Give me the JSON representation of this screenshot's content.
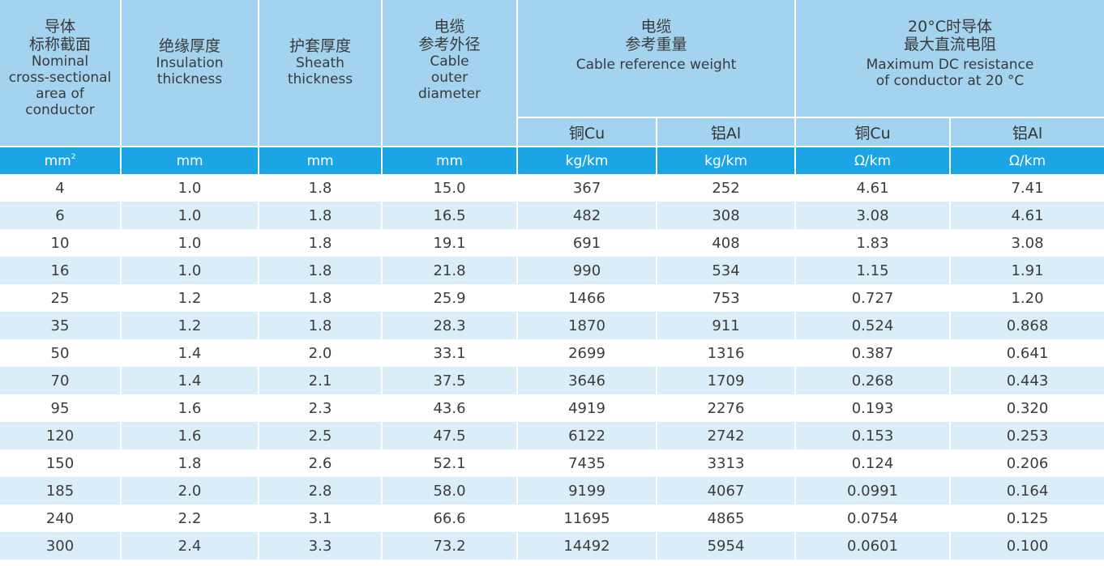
{
  "headers": {
    "area": {
      "zh1": "导体",
      "zh2": "标称截面",
      "en": [
        "Nominal",
        "cross-sectional",
        "area of",
        "conductor"
      ]
    },
    "insulation": {
      "zh": "绝缘厚度",
      "en": [
        "Insulation",
        "thickness"
      ]
    },
    "sheath": {
      "zh": "护套厚度",
      "en": [
        "Sheath",
        "thickness"
      ]
    },
    "diameter": {
      "zh1": "电缆",
      "zh2": "参考外径",
      "en": [
        "Cable",
        "outer",
        "diameter"
      ]
    },
    "weight": {
      "zh1": "电缆",
      "zh2": "参考重量",
      "en": "Cable reference weight",
      "sub_cu": "铜Cu",
      "sub_al": "铝Al"
    },
    "resistance": {
      "zh1": "20°C时导体",
      "zh2": "最大直流电阻",
      "en1": "Maximum DC resistance",
      "en2": "of conductor at 20 °C",
      "sub_cu": "铜Cu",
      "sub_al": "铝Al"
    }
  },
  "units": {
    "area": "mm",
    "area_sup": "2",
    "insulation": "mm",
    "sheath": "mm",
    "diameter": "mm",
    "weight_cu": "kg/km",
    "weight_al": "kg/km",
    "res_cu": "Ω/km",
    "res_al": "Ω/km"
  },
  "rows": [
    [
      "4",
      "1.0",
      "1.8",
      "15.0",
      "367",
      "252",
      "4.61",
      "7.41"
    ],
    [
      "6",
      "1.0",
      "1.8",
      "16.5",
      "482",
      "308",
      "3.08",
      "4.61"
    ],
    [
      "10",
      "1.0",
      "1.8",
      "19.1",
      "691",
      "408",
      "1.83",
      "3.08"
    ],
    [
      "16",
      "1.0",
      "1.8",
      "21.8",
      "990",
      "534",
      "1.15",
      "1.91"
    ],
    [
      "25",
      "1.2",
      "1.8",
      "25.9",
      "1466",
      "753",
      "0.727",
      "1.20"
    ],
    [
      "35",
      "1.2",
      "1.8",
      "28.3",
      "1870",
      "911",
      "0.524",
      "0.868"
    ],
    [
      "50",
      "1.4",
      "2.0",
      "33.1",
      "2699",
      "1316",
      "0.387",
      "0.641"
    ],
    [
      "70",
      "1.4",
      "2.1",
      "37.5",
      "3646",
      "1709",
      "0.268",
      "0.443"
    ],
    [
      "95",
      "1.6",
      "2.3",
      "43.6",
      "4919",
      "2276",
      "0.193",
      "0.320"
    ],
    [
      "120",
      "1.6",
      "2.5",
      "47.5",
      "6122",
      "2742",
      "0.153",
      "0.253"
    ],
    [
      "150",
      "1.8",
      "2.6",
      "52.1",
      "7435",
      "3313",
      "0.124",
      "0.206"
    ],
    [
      "185",
      "2.0",
      "2.8",
      "58.0",
      "9199",
      "4067",
      "0.0991",
      "0.164"
    ],
    [
      "240",
      "2.2",
      "3.1",
      "66.6",
      "11695",
      "4865",
      "0.0754",
      "0.125"
    ],
    [
      "300",
      "2.4",
      "3.3",
      "73.2",
      "14492",
      "5954",
      "0.0601",
      "0.100"
    ]
  ],
  "colors": {
    "header_bg": "#a3d3ef",
    "units_bg": "#1ca5e4",
    "stripe_bg": "#daeef9"
  }
}
